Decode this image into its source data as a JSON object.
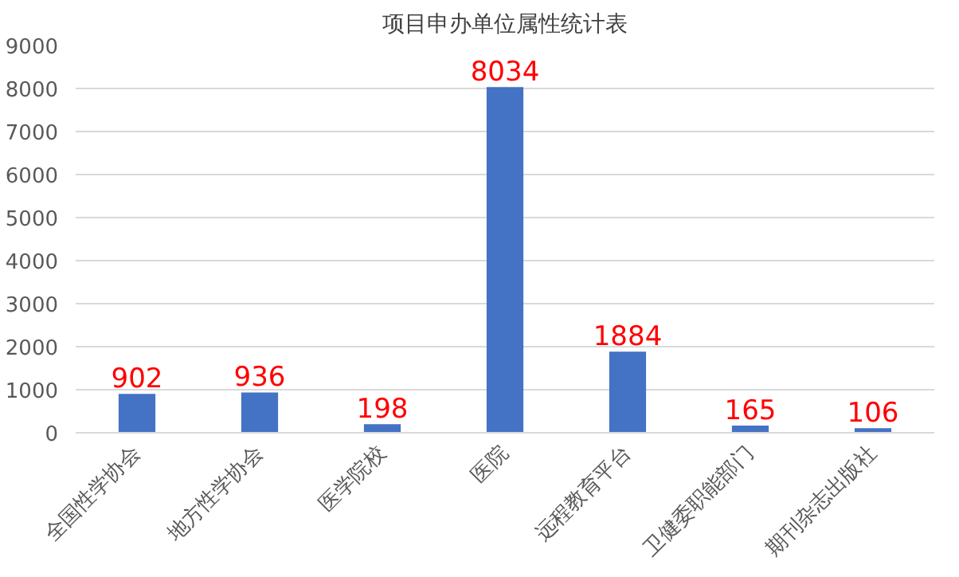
{
  "chart_data": {
    "type": "bar",
    "title": "项目申办单位属性统计表",
    "categories": [
      "全国性学协会",
      "地方性学协会",
      "医学院校",
      "医院",
      "远程教育平台",
      "卫健委职能部门",
      "期刊杂志出版社"
    ],
    "values": [
      902,
      936,
      198,
      8034,
      1884,
      165,
      106
    ],
    "color": "#4472c4",
    "ylim": [
      0,
      9000
    ],
    "yticks": [
      0,
      1000,
      2000,
      3000,
      4000,
      5000,
      6000,
      7000,
      8000,
      9000
    ],
    "grid": "y",
    "data_labels": true
  }
}
